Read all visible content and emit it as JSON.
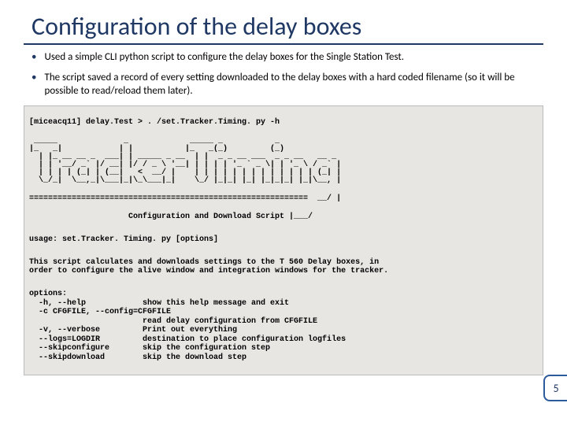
{
  "title": "Configuration of the delay boxes",
  "bullets": [
    "Used a simple CLI python script to configure the delay boxes for the Single Station Test.",
    "The script saved a record of every setting downloaded to the delay boxes with a hard coded filename (so it will be possible to read/reload them later)."
  ],
  "terminal": {
    "command": "[miceacq11] delay.Test > . /set.Tracker.Timing. py -h",
    "ascii": " _____              _             _____ _           _\n|_   _|            | |           |_   _(_)         (_)\n  | |_ __ __ _  ___| | _____ _ __  | |  _ _ __ ___  _ _ __   __ _\n  | | '__/ _` |/ __| |/ / _ \\ '__| | | | | '_ ` _ \\| | '_ \\ / _` |\n  | | | | (_| | (__|   <  __/ |    | | | | | | | | | | | | | (_| |\n  \\_/_|  \\__,_|\\___|_|\\_\\___|_|    \\_/ |_|_| |_| |_|_|_| |_|\\__, |",
    "sep": "===========================================================  __/ |",
    "configLine": "                     Configuration and Download Script |___/",
    "usage": "usage: set.Tracker. Timing. py [options]",
    "description": "This script calculates and downloads settings to the T 560 Delay boxes, in\norder to configure the alive window and integration windows for the tracker.",
    "options": "options:\n  -h, --help            show this help message and exit\n  -c CFGFILE, --config=CFGFILE\n                        read delay configuration from CFGFILE\n  -v, --verbose         Print out everything\n  --logs=LOGDIR         destination to place configuration logfiles\n  --skipconfigure       skip the configuration step\n  --skipdownload        skip the download step"
  },
  "pageNumber": "5"
}
